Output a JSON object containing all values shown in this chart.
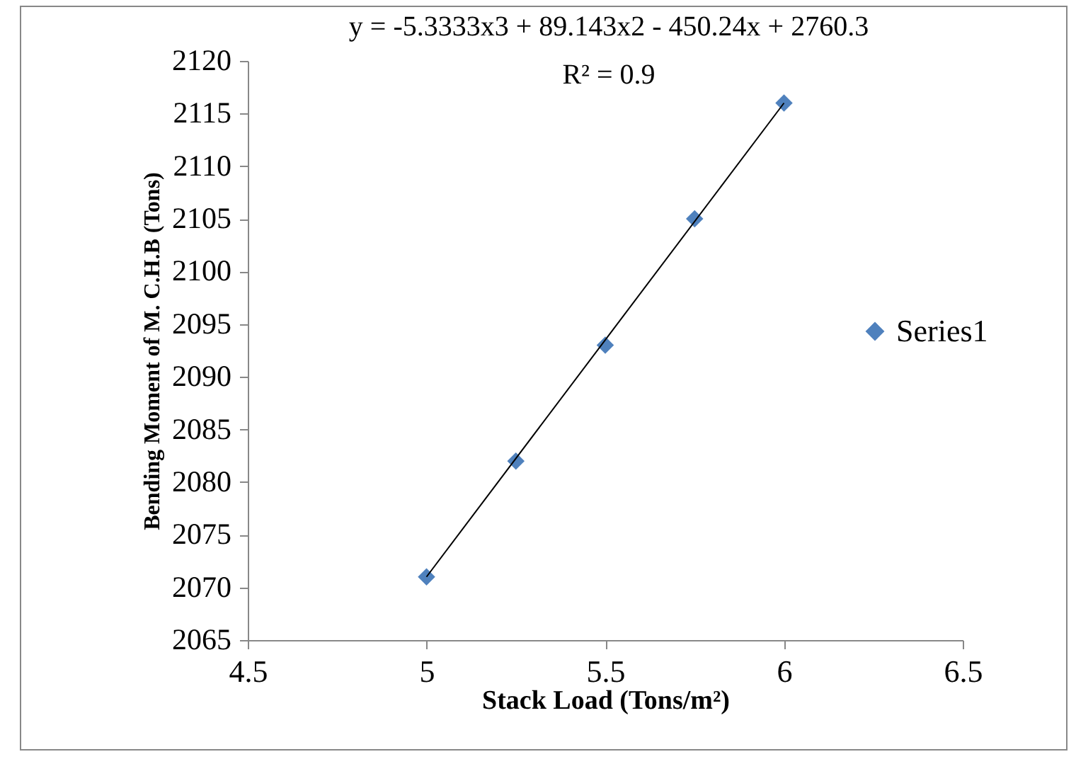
{
  "chart_data": {
    "type": "scatter",
    "xlabel": "Stack Load (Tons/m²)",
    "ylabel": "Bending Moment of M. C.H.B (Tons)",
    "annotations": [
      "y = -5.3333x3 + 89.143x2 - 450.24x + 2760.3",
      "R² = 0.9"
    ],
    "x": [
      5,
      5.25,
      5.5,
      5.75,
      6
    ],
    "series": [
      {
        "name": "Series1",
        "color": "#4f81bd",
        "values": [
          2071,
          2082,
          2093,
          2105,
          2116
        ],
        "marker": "diamond"
      },
      {
        "type": "line",
        "color": "#000000",
        "x": [
          5,
          5.5,
          6
        ],
        "values": [
          2071,
          2093.5,
          2116
        ],
        "marker": "none"
      }
    ],
    "xlim": [
      4.5,
      6.5
    ],
    "xticks": [
      4.5,
      5,
      5.5,
      6,
      6.5
    ],
    "ylim": [
      2065,
      2120
    ],
    "yticks": [
      2065,
      2070,
      2075,
      2080,
      2085,
      2090,
      2095,
      2100,
      2105,
      2110,
      2115,
      2120
    ],
    "grid": false,
    "legend": "right"
  }
}
